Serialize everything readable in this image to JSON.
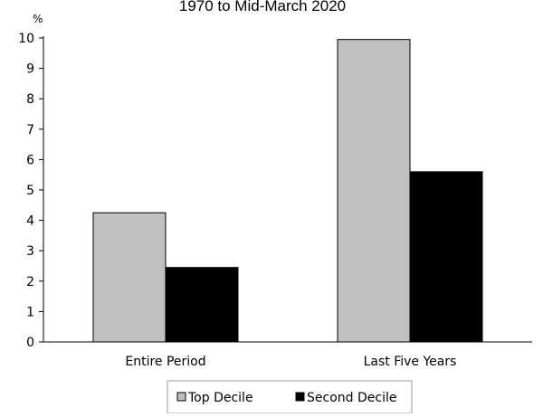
{
  "chart_data": {
    "type": "bar",
    "subtitle": "1970 to Mid-March 2020",
    "ylabel": "%",
    "categories": [
      "Entire Period",
      "Last Five Years"
    ],
    "series": [
      {
        "name": "Top Decile",
        "color": "#c0c0c0",
        "values": [
          4.25,
          9.95
        ]
      },
      {
        "name": "Second Decile",
        "color": "#000000",
        "values": [
          2.45,
          5.6
        ]
      }
    ],
    "ylim": [
      0,
      10
    ],
    "yticks": [
      0,
      1,
      2,
      3,
      4,
      5,
      6,
      7,
      8,
      9,
      10
    ],
    "grid": false,
    "legend_position": "bottom"
  }
}
